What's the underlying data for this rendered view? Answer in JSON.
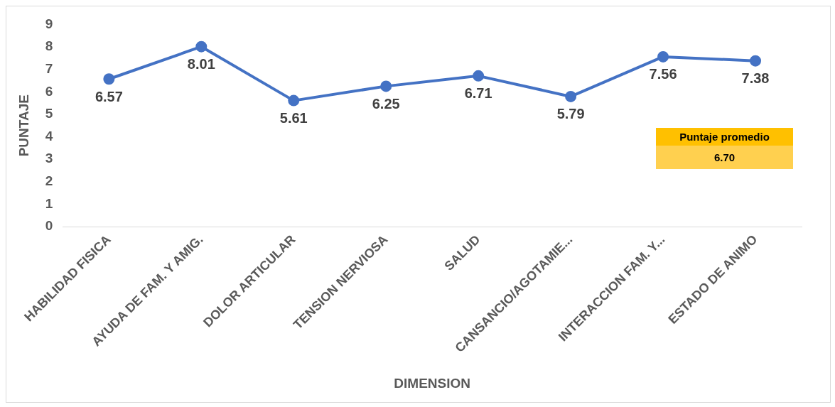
{
  "chart_data": {
    "type": "line",
    "xlabel": "DIMENSION",
    "ylabel": "PUNTAJE",
    "categories": [
      "HABILIDAD FISICA",
      "AYUDA DE FAM. Y AMIG.",
      "DOLOR ARTICULAR",
      "TENSION NERVIOSA",
      "SALUD",
      "CANSANCIO/AGOTAMIE...",
      "INTERACCION FAM. Y...",
      "ESTADO DE ANIMO"
    ],
    "series": [
      {
        "color": "#4472c4",
        "values": [
          6.57,
          8.01,
          5.61,
          6.25,
          6.71,
          5.79,
          7.56,
          7.38
        ]
      }
    ],
    "ylim": [
      0,
      9
    ],
    "yticks": [
      0,
      1,
      2,
      3,
      4,
      5,
      6,
      7,
      8,
      9
    ],
    "grid": false,
    "legend": false,
    "marker": "circle",
    "line_style": "solid",
    "data_labels": true,
    "annotations": [
      "Puntaje promedio",
      "6.70"
    ]
  }
}
